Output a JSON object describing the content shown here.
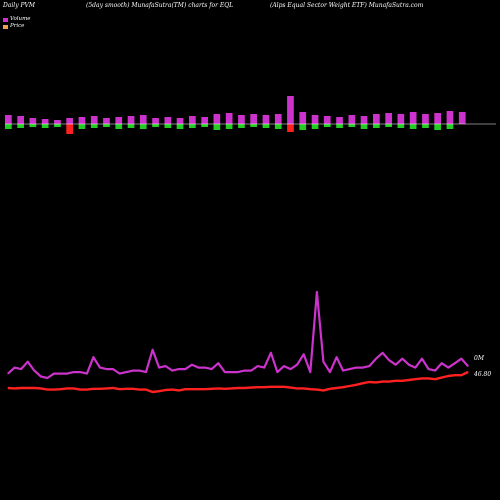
{
  "header": {
    "left": "Daily PVM",
    "center": "(5day smooth) MunafaSutra(TM) charts for EQL",
    "right": "(Alps Equal Sector Weight ETF) MunafaSutra.com"
  },
  "legend": [
    {
      "label": "Volume",
      "color": "#cc33cc"
    },
    {
      "label": "Price",
      "color": "#f0a050"
    }
  ],
  "colors": {
    "background": "#000000",
    "volume_line": "#cc33cc",
    "price_line": "#ff2020",
    "bar_up": "#cc33cc",
    "bar_down": "#22cc22",
    "bar_big_down": "#ff2020",
    "baseline": "#ffffff"
  },
  "chart_data": [
    {
      "type": "bar",
      "description_key": "volume_bars",
      "series": [
        {
          "values": [
            9,
            -5,
            8,
            -4,
            6,
            -3,
            5,
            -4,
            4,
            -3,
            6,
            -10,
            7,
            -5,
            8,
            -4,
            6,
            -3,
            7,
            -5,
            8,
            -4,
            9,
            -5,
            6,
            -3,
            7,
            -4,
            6,
            -5,
            8,
            -4,
            7,
            -3,
            10,
            -6,
            11,
            -5,
            9,
            -4,
            10,
            -3,
            9,
            -4,
            10,
            -5,
            28,
            -8,
            12,
            -6,
            9,
            -5,
            8,
            -3,
            7,
            -4,
            9,
            -3,
            8,
            -5,
            10,
            -4,
            11,
            -3,
            10,
            -4,
            12,
            -5,
            10,
            -4,
            11,
            -6,
            13,
            -5,
            12
          ]
        }
      ]
    },
    {
      "type": "line",
      "series": [
        {
          "name": "Volume",
          "values": [
            38,
            34,
            35,
            30,
            36,
            40,
            41,
            38,
            38,
            38,
            37,
            37,
            38,
            27,
            34,
            35,
            35,
            38,
            37,
            36,
            36,
            37,
            22,
            34,
            33,
            36,
            35,
            35,
            32,
            34,
            34,
            35,
            31,
            37,
            37,
            37,
            36,
            36,
            33,
            34,
            24,
            37,
            33,
            35,
            32,
            25,
            37,
            -17,
            30,
            37,
            27,
            36,
            35,
            34,
            34,
            33,
            28,
            24,
            29,
            32,
            28,
            32,
            34,
            28,
            35,
            36,
            31,
            34,
            31,
            28,
            33
          ]
        },
        {
          "name": "Price",
          "values": [
            46.4,
            46.39,
            46.4,
            46.4,
            46.4,
            46.39,
            46.36,
            46.36,
            46.37,
            46.39,
            46.39,
            46.36,
            46.36,
            46.38,
            46.38,
            46.39,
            46.4,
            46.37,
            46.38,
            46.38,
            46.36,
            46.36,
            46.3,
            46.32,
            46.35,
            46.36,
            46.34,
            46.37,
            46.37,
            46.37,
            46.37,
            46.38,
            46.39,
            46.38,
            46.39,
            46.4,
            46.4,
            46.41,
            46.42,
            46.42,
            46.43,
            46.43,
            46.43,
            46.41,
            46.39,
            46.39,
            46.37,
            46.36,
            46.34,
            46.38,
            46.4,
            46.42,
            46.45,
            46.48,
            46.52,
            46.55,
            46.54,
            46.56,
            46.56,
            46.58,
            46.58,
            46.6,
            46.62,
            46.64,
            46.64,
            46.62,
            46.66,
            46.7,
            46.72,
            46.72,
            46.8
          ]
        }
      ],
      "annotations": [
        {
          "text": "0M",
          "series": "Volume"
        },
        {
          "text": "46.80",
          "series": "Price"
        }
      ]
    }
  ]
}
